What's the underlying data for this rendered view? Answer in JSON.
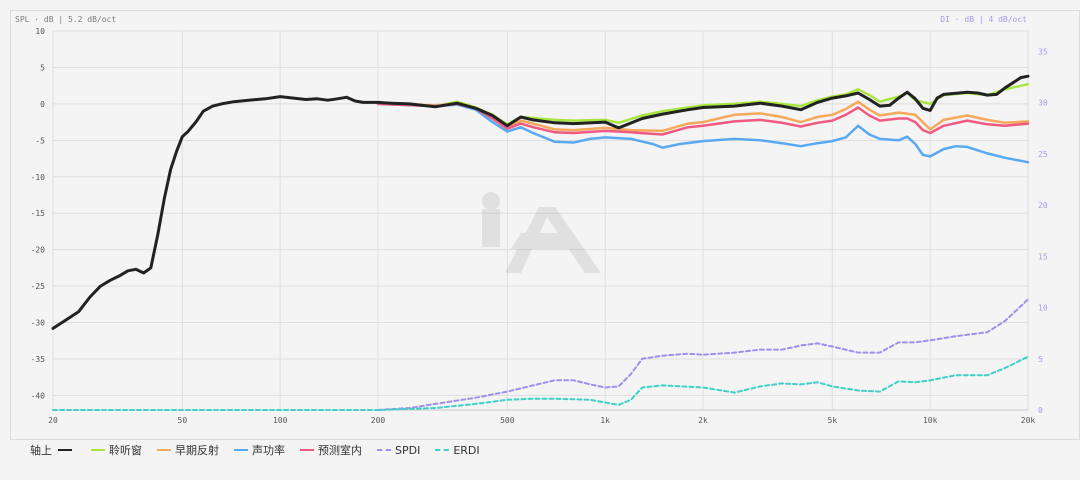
{
  "chart_data": {
    "type": "line",
    "title": "",
    "y_left_caption": "SPL · dB  |  5.2 dB/oct",
    "y_right_caption": "DI · dB  |  4 dB/oct",
    "x_scale": "log",
    "x_range": [
      20,
      20000
    ],
    "y_left_range": [
      -42,
      10
    ],
    "y_right_range": [
      0,
      37
    ],
    "x_ticks": [
      20,
      50,
      100,
      200,
      500,
      1000,
      2000,
      5000,
      10000,
      20000
    ],
    "x_tick_labels": [
      "20",
      "50",
      "100",
      "200",
      "500",
      "1k",
      "2k",
      "5k",
      "10k",
      "20k"
    ],
    "y_left_ticks": [
      10,
      5,
      0,
      -5,
      -10,
      -15,
      -20,
      -25,
      -30,
      -35,
      -40
    ],
    "y_left_tick_labels": [
      "10",
      "5",
      "0",
      "-5",
      "-10",
      "-15",
      "-20",
      "-25",
      "-30",
      "-35",
      "-40"
    ],
    "y_right_ticks": [
      35,
      30,
      25,
      20,
      15,
      10,
      5,
      0
    ],
    "y_right_tick_labels": [
      "35",
      "30",
      "25",
      "20",
      "15",
      "10",
      "5",
      "0"
    ],
    "grid": true,
    "legend_position": "bottom-left",
    "series": [
      {
        "name": "聆听窗",
        "color": "#a8e53f",
        "axis": "left",
        "dashed": false,
        "points": [
          [
            200,
            0
          ],
          [
            300,
            -0.3
          ],
          [
            350,
            0.3
          ],
          [
            400,
            -0.5
          ],
          [
            450,
            -1.5
          ],
          [
            500,
            -2.8
          ],
          [
            550,
            -1.8
          ],
          [
            700,
            -2.2
          ],
          [
            800,
            -2.3
          ],
          [
            1000,
            -2.2
          ],
          [
            1100,
            -2.6
          ],
          [
            1300,
            -1.6
          ],
          [
            1500,
            -1
          ],
          [
            1800,
            -0.5
          ],
          [
            2000,
            -0.2
          ],
          [
            2500,
            0
          ],
          [
            3000,
            0.3
          ],
          [
            3500,
            0
          ],
          [
            4000,
            -0.3
          ],
          [
            4500,
            0.5
          ],
          [
            5000,
            1
          ],
          [
            5500,
            1.3
          ],
          [
            6000,
            2
          ],
          [
            6500,
            1.2
          ],
          [
            7000,
            0.3
          ],
          [
            8000,
            1
          ],
          [
            8500,
            1.5
          ],
          [
            9000,
            0.5
          ],
          [
            10000,
            0
          ],
          [
            11000,
            1.2
          ],
          [
            13000,
            1.5
          ],
          [
            15000,
            1.2
          ],
          [
            17000,
            2
          ],
          [
            20000,
            2.7
          ]
        ]
      },
      {
        "name": "早期反射",
        "color": "#f5a95a",
        "axis": "left",
        "dashed": false,
        "points": [
          [
            200,
            0
          ],
          [
            300,
            -0.2
          ],
          [
            350,
            0
          ],
          [
            400,
            -0.6
          ],
          [
            450,
            -1.8
          ],
          [
            500,
            -3.3
          ],
          [
            550,
            -2.3
          ],
          [
            600,
            -2.7
          ],
          [
            700,
            -3.5
          ],
          [
            800,
            -3.6
          ],
          [
            1000,
            -3.3
          ],
          [
            1200,
            -3.6
          ],
          [
            1500,
            -3.7
          ],
          [
            1800,
            -2.7
          ],
          [
            2000,
            -2.5
          ],
          [
            2500,
            -1.5
          ],
          [
            3000,
            -1.3
          ],
          [
            3500,
            -1.8
          ],
          [
            4000,
            -2.5
          ],
          [
            4500,
            -1.8
          ],
          [
            5000,
            -1.5
          ],
          [
            5500,
            -0.7
          ],
          [
            6000,
            0.3
          ],
          [
            6500,
            -0.8
          ],
          [
            7000,
            -1.6
          ],
          [
            8000,
            -1.2
          ],
          [
            9000,
            -1.5
          ],
          [
            10000,
            -3.5
          ],
          [
            11000,
            -2.2
          ],
          [
            13000,
            -1.6
          ],
          [
            15000,
            -2.2
          ],
          [
            17000,
            -2.6
          ],
          [
            20000,
            -2.4
          ]
        ]
      },
      {
        "name": "声功率",
        "color": "#5aa8f0",
        "axis": "left",
        "dashed": false,
        "points": [
          [
            200,
            0
          ],
          [
            300,
            -0.3
          ],
          [
            350,
            -0.1
          ],
          [
            400,
            -0.8
          ],
          [
            450,
            -2.5
          ],
          [
            500,
            -3.8
          ],
          [
            550,
            -3.2
          ],
          [
            600,
            -4
          ],
          [
            700,
            -5.2
          ],
          [
            800,
            -5.3
          ],
          [
            900,
            -4.8
          ],
          [
            1000,
            -4.6
          ],
          [
            1200,
            -4.8
          ],
          [
            1400,
            -5.5
          ],
          [
            1500,
            -6
          ],
          [
            1700,
            -5.5
          ],
          [
            2000,
            -5.1
          ],
          [
            2500,
            -4.8
          ],
          [
            3000,
            -5
          ],
          [
            3500,
            -5.4
          ],
          [
            4000,
            -5.8
          ],
          [
            4500,
            -5.4
          ],
          [
            5000,
            -5.1
          ],
          [
            5500,
            -4.6
          ],
          [
            6000,
            -3
          ],
          [
            6500,
            -4.2
          ],
          [
            7000,
            -4.8
          ],
          [
            8000,
            -5
          ],
          [
            8500,
            -4.5
          ],
          [
            9000,
            -5.5
          ],
          [
            9500,
            -7
          ],
          [
            10000,
            -7.2
          ],
          [
            11000,
            -6.2
          ],
          [
            12000,
            -5.8
          ],
          [
            13000,
            -5.9
          ],
          [
            15000,
            -6.8
          ],
          [
            17000,
            -7.4
          ],
          [
            20000,
            -8
          ]
        ]
      },
      {
        "name": "预测室内",
        "color": "#f05a82",
        "axis": "left",
        "dashed": false,
        "points": [
          [
            200,
            0
          ],
          [
            300,
            -0.3
          ],
          [
            350,
            0
          ],
          [
            400,
            -0.6
          ],
          [
            450,
            -2
          ],
          [
            500,
            -3.4
          ],
          [
            550,
            -2.7
          ],
          [
            600,
            -3.2
          ],
          [
            700,
            -3.9
          ],
          [
            800,
            -4
          ],
          [
            1000,
            -3.7
          ],
          [
            1200,
            -3.9
          ],
          [
            1500,
            -4.2
          ],
          [
            1800,
            -3.2
          ],
          [
            2000,
            -3
          ],
          [
            2500,
            -2.4
          ],
          [
            3000,
            -2.2
          ],
          [
            3500,
            -2.6
          ],
          [
            4000,
            -3.1
          ],
          [
            4500,
            -2.6
          ],
          [
            5000,
            -2.3
          ],
          [
            5500,
            -1.5
          ],
          [
            6000,
            -0.5
          ],
          [
            6500,
            -1.6
          ],
          [
            7000,
            -2.3
          ],
          [
            8000,
            -2
          ],
          [
            8500,
            -2
          ],
          [
            9000,
            -2.5
          ],
          [
            9500,
            -3.6
          ],
          [
            10000,
            -4
          ],
          [
            11000,
            -3
          ],
          [
            13000,
            -2.3
          ],
          [
            15000,
            -2.8
          ],
          [
            17000,
            -3
          ],
          [
            20000,
            -2.7
          ]
        ]
      },
      {
        "name": "轴上",
        "color": "#222222",
        "axis": "left",
        "dashed": false,
        "points": [
          [
            20,
            -30.8
          ],
          [
            22,
            -29.6
          ],
          [
            24,
            -28.5
          ],
          [
            26,
            -26.5
          ],
          [
            28,
            -25
          ],
          [
            30,
            -24.2
          ],
          [
            32,
            -23.6
          ],
          [
            34,
            -22.9
          ],
          [
            36,
            -22.7
          ],
          [
            38,
            -23.2
          ],
          [
            40,
            -22.5
          ],
          [
            42,
            -18
          ],
          [
            44,
            -13
          ],
          [
            46,
            -9
          ],
          [
            48,
            -6.5
          ],
          [
            50,
            -4.5
          ],
          [
            52,
            -3.8
          ],
          [
            55,
            -2.5
          ],
          [
            58,
            -1
          ],
          [
            62,
            -0.3
          ],
          [
            66,
            0
          ],
          [
            72,
            0.3
          ],
          [
            80,
            0.5
          ],
          [
            90,
            0.7
          ],
          [
            100,
            1
          ],
          [
            110,
            0.8
          ],
          [
            120,
            0.6
          ],
          [
            130,
            0.7
          ],
          [
            140,
            0.5
          ],
          [
            150,
            0.7
          ],
          [
            160,
            0.9
          ],
          [
            170,
            0.4
          ],
          [
            180,
            0.2
          ],
          [
            200,
            0.2
          ],
          [
            220,
            0.1
          ],
          [
            250,
            0
          ],
          [
            300,
            -0.4
          ],
          [
            350,
            0.1
          ],
          [
            400,
            -0.6
          ],
          [
            450,
            -1.6
          ],
          [
            500,
            -3
          ],
          [
            550,
            -1.8
          ],
          [
            600,
            -2.2
          ],
          [
            700,
            -2.6
          ],
          [
            800,
            -2.7
          ],
          [
            1000,
            -2.5
          ],
          [
            1100,
            -3.3
          ],
          [
            1300,
            -2
          ],
          [
            1500,
            -1.4
          ],
          [
            1800,
            -0.8
          ],
          [
            2000,
            -0.5
          ],
          [
            2500,
            -0.3
          ],
          [
            3000,
            0.1
          ],
          [
            3500,
            -0.3
          ],
          [
            4000,
            -0.8
          ],
          [
            4500,
            0.2
          ],
          [
            5000,
            0.8
          ],
          [
            5500,
            1.1
          ],
          [
            6000,
            1.5
          ],
          [
            6500,
            0.6
          ],
          [
            7000,
            -0.3
          ],
          [
            7500,
            -0.2
          ],
          [
            8000,
            0.8
          ],
          [
            8500,
            1.6
          ],
          [
            9000,
            0.7
          ],
          [
            9500,
            -0.6
          ],
          [
            10000,
            -0.9
          ],
          [
            10500,
            0.8
          ],
          [
            11000,
            1.3
          ],
          [
            13000,
            1.6
          ],
          [
            14000,
            1.5
          ],
          [
            15000,
            1.2
          ],
          [
            16000,
            1.3
          ],
          [
            17000,
            2.2
          ],
          [
            18000,
            2.9
          ],
          [
            19000,
            3.6
          ],
          [
            20000,
            3.8
          ]
        ]
      },
      {
        "name": "SPDI",
        "color": "#a08ef0",
        "axis": "right",
        "dashed": true,
        "points": [
          [
            200,
            0
          ],
          [
            250,
            0.2
          ],
          [
            300,
            0.6
          ],
          [
            400,
            1.2
          ],
          [
            500,
            1.8
          ],
          [
            600,
            2.4
          ],
          [
            700,
            2.9
          ],
          [
            800,
            2.9
          ],
          [
            900,
            2.5
          ],
          [
            1000,
            2.2
          ],
          [
            1100,
            2.3
          ],
          [
            1200,
            3.5
          ],
          [
            1300,
            5
          ],
          [
            1500,
            5.3
          ],
          [
            1800,
            5.5
          ],
          [
            2000,
            5.4
          ],
          [
            2500,
            5.6
          ],
          [
            3000,
            5.9
          ],
          [
            3500,
            5.9
          ],
          [
            4000,
            6.3
          ],
          [
            4500,
            6.5
          ],
          [
            5000,
            6.2
          ],
          [
            6000,
            5.6
          ],
          [
            7000,
            5.6
          ],
          [
            8000,
            6.6
          ],
          [
            9000,
            6.6
          ],
          [
            10000,
            6.8
          ],
          [
            12000,
            7.2
          ],
          [
            15000,
            7.6
          ],
          [
            17000,
            8.7
          ],
          [
            20000,
            10.8
          ]
        ]
      },
      {
        "name": "ERDI",
        "color": "#40d0c8",
        "axis": "right",
        "dashed": true,
        "points": [
          [
            20,
            0
          ],
          [
            200,
            0
          ],
          [
            300,
            0.2
          ],
          [
            400,
            0.6
          ],
          [
            500,
            1
          ],
          [
            600,
            1.1
          ],
          [
            700,
            1.1
          ],
          [
            900,
            1
          ],
          [
            1100,
            0.5
          ],
          [
            1200,
            1
          ],
          [
            1300,
            2.2
          ],
          [
            1500,
            2.4
          ],
          [
            2000,
            2.2
          ],
          [
            2500,
            1.7
          ],
          [
            3000,
            2.3
          ],
          [
            3500,
            2.6
          ],
          [
            4000,
            2.5
          ],
          [
            4500,
            2.7
          ],
          [
            5000,
            2.3
          ],
          [
            6000,
            1.9
          ],
          [
            7000,
            1.8
          ],
          [
            8000,
            2.8
          ],
          [
            9000,
            2.7
          ],
          [
            10000,
            2.9
          ],
          [
            12000,
            3.4
          ],
          [
            15000,
            3.4
          ],
          [
            17000,
            4.1
          ],
          [
            20000,
            5.2
          ]
        ]
      }
    ],
    "legend_order": [
      "轴上",
      "聆听窗",
      "早期反射",
      "声功率",
      "预测室内",
      "SPDI",
      "ERDI"
    ]
  }
}
